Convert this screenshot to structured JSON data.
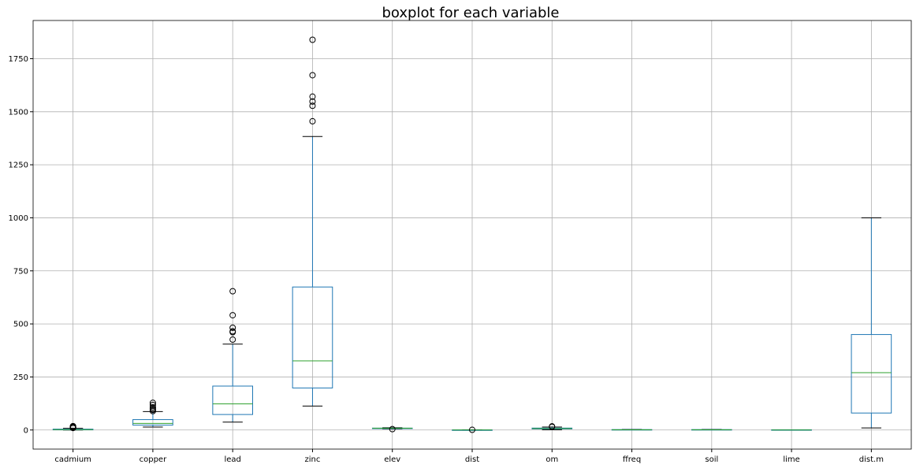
{
  "chart_data": {
    "type": "boxplot",
    "title": "boxplot for each variable",
    "xlabel": "",
    "ylabel": "",
    "ylim": [
      -90,
      1930
    ],
    "yticks": [
      0,
      250,
      500,
      750,
      1000,
      1250,
      1500,
      1750
    ],
    "grid": true,
    "categories": [
      "cadmium",
      "copper",
      "lead",
      "zinc",
      "elev",
      "dist",
      "om",
      "ffreq",
      "soil",
      "lime",
      "dist.m"
    ],
    "boxes": [
      {
        "name": "cadmium",
        "whislo": 0.2,
        "q1": 0.8,
        "med": 2.1,
        "q3": 3.9,
        "whishi": 8.1,
        "fliers": [
          9.4,
          10.9,
          11.2,
          11.5,
          11.7,
          12.0,
          12.9,
          14.1,
          17.0,
          18.1
        ]
      },
      {
        "name": "copper",
        "whislo": 14,
        "q1": 23,
        "med": 31,
        "q3": 49,
        "whishi": 87,
        "fliers": [
          89,
          95,
          100,
          107,
          118,
          128
        ]
      },
      {
        "name": "lead",
        "whislo": 37,
        "q1": 73,
        "med": 123,
        "q3": 207,
        "whishi": 405,
        "fliers": [
          426,
          461,
          465,
          482,
          541,
          654
        ]
      },
      {
        "name": "zinc",
        "whislo": 113,
        "q1": 198,
        "med": 326,
        "q3": 674,
        "whishi": 1383,
        "fliers": [
          1455,
          1528,
          1548,
          1571,
          1672,
          1839
        ]
      },
      {
        "name": "elev",
        "whislo": 5.2,
        "q1": 7.5,
        "med": 8.2,
        "q3": 8.9,
        "whishi": 10.5,
        "fliers": [
          4.0
        ]
      },
      {
        "name": "dist",
        "whislo": 0.0,
        "q1": 0.08,
        "med": 0.21,
        "q3": 0.36,
        "whishi": 0.88,
        "fliers": [
          0.9
        ]
      },
      {
        "name": "om",
        "whislo": 1.0,
        "q1": 5.3,
        "med": 6.9,
        "q3": 9.0,
        "whishi": 14.0,
        "fliers": [
          15.0,
          17.0
        ]
      },
      {
        "name": "ffreq",
        "whislo": 1,
        "q1": 1,
        "med": 1,
        "q3": 2,
        "whishi": 3,
        "fliers": []
      },
      {
        "name": "soil",
        "whislo": 1,
        "q1": 1,
        "med": 1,
        "q3": 2,
        "whishi": 3,
        "fliers": []
      },
      {
        "name": "lime",
        "whislo": 0,
        "q1": 0,
        "med": 0,
        "q3": 1,
        "whishi": 1,
        "fliers": []
      },
      {
        "name": "dist.m",
        "whislo": 10,
        "q1": 80,
        "med": 270,
        "q3": 450,
        "whishi": 1000,
        "fliers": []
      }
    ],
    "colors": {
      "box": "#1f77b4",
      "median": "#2ca02c",
      "cap": "#000000",
      "grid": "#b0b0b0"
    }
  }
}
